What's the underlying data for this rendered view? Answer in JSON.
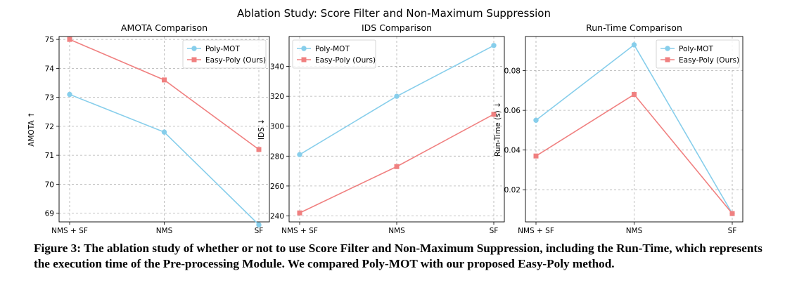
{
  "figure": {
    "suptitle": "Ablation Study: Score Filter and Non-Maximum Suppression"
  },
  "series_styles": [
    {
      "name": "Poly-MOT",
      "color": "#87ceeb",
      "marker": "circle"
    },
    {
      "name": "Easy-Poly (Ours)",
      "color": "#f08080",
      "marker": "square"
    }
  ],
  "chart_data": [
    {
      "type": "line",
      "title": "AMOTA Comparison",
      "xlabel": "",
      "ylabel": "AMOTA ↑",
      "categories": [
        "NMS + SF",
        "NMS",
        "SF"
      ],
      "ylim": [
        68.7,
        75.1
      ],
      "yticks": [
        "69",
        "70",
        "71",
        "72",
        "73",
        "74",
        "75"
      ],
      "legend_position": "top-right",
      "series": [
        {
          "name": "Poly-MOT",
          "values": [
            73.1,
            71.8,
            68.6
          ]
        },
        {
          "name": "Easy-Poly (Ours)",
          "values": [
            75.0,
            73.6,
            71.2
          ]
        }
      ]
    },
    {
      "type": "line",
      "title": "IDS Comparison",
      "xlabel": "",
      "ylabel": "IDS ↓",
      "categories": [
        "NMS + SF",
        "NMS",
        "SF"
      ],
      "ylim": [
        236,
        360
      ],
      "yticks": [
        "240",
        "260",
        "280",
        "300",
        "320",
        "340"
      ],
      "legend_position": "top-left",
      "series": [
        {
          "name": "Poly-MOT",
          "values": [
            281,
            320,
            354
          ]
        },
        {
          "name": "Easy-Poly (Ours)",
          "values": [
            242,
            273,
            308
          ]
        }
      ]
    },
    {
      "type": "line",
      "title": "Run-Time Comparison",
      "xlabel": "",
      "ylabel": "Run-Time (s) ↓",
      "categories": [
        "NMS + SF",
        "NMS",
        "SF"
      ],
      "ylim": [
        0.0038,
        0.0972
      ],
      "yticks": [
        "0.02",
        "0.04",
        "0.06",
        "0.08"
      ],
      "legend_position": "top-right",
      "series": [
        {
          "name": "Poly-MOT",
          "values": [
            0.055,
            0.093,
            0.008
          ]
        },
        {
          "name": "Easy-Poly (Ours)",
          "values": [
            0.037,
            0.068,
            0.008
          ]
        }
      ]
    }
  ],
  "caption": {
    "text": "Figure 3: The ablation study of whether or not to use Score Filter and Non-Maximum Suppression, including the Run-Time, which represents the execution time of the Pre-processing Module. We compared Poly-MOT with our proposed Easy-Poly method."
  }
}
